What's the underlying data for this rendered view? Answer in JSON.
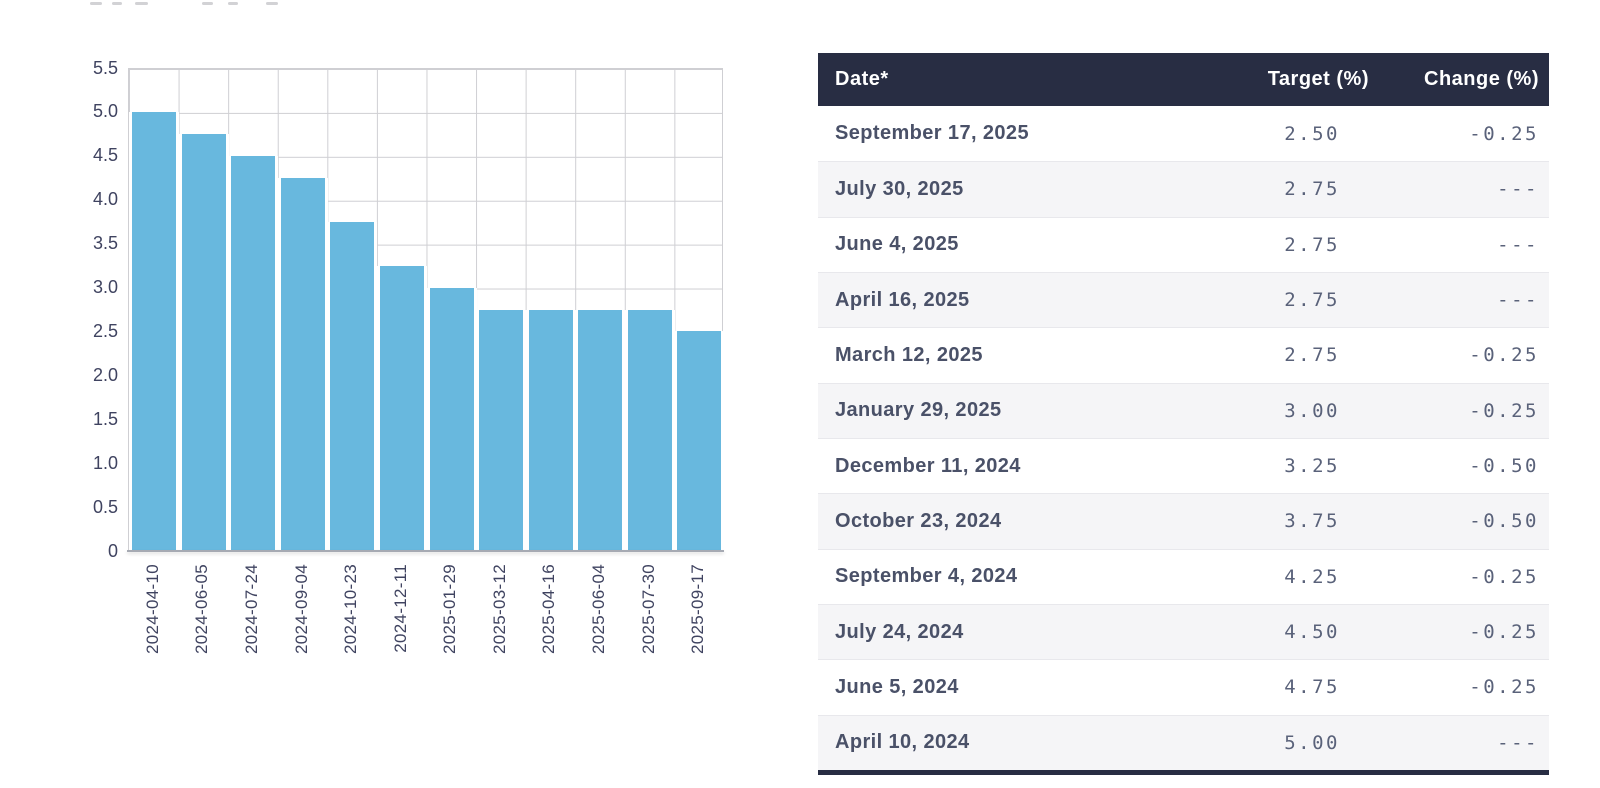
{
  "chart_data": {
    "type": "bar",
    "categories": [
      "2024-04-10",
      "2024-06-05",
      "2024-07-24",
      "2024-09-04",
      "2024-10-23",
      "2024-12-11",
      "2025-01-29",
      "2025-03-12",
      "2025-04-16",
      "2025-06-04",
      "2025-07-30",
      "2025-09-17"
    ],
    "values": [
      5.0,
      4.75,
      4.5,
      4.25,
      3.75,
      3.25,
      3.0,
      2.75,
      2.75,
      2.75,
      2.75,
      2.5
    ],
    "title": "",
    "xlabel": "",
    "ylabel": "",
    "ylim": [
      0,
      5.5
    ],
    "ytick_labels": [
      "5.5",
      "5.0",
      "4.5",
      "4.0",
      "3.5",
      "3.0",
      "2.5",
      "2.0",
      "1.5",
      "1.0",
      "0.5",
      "0"
    ],
    "grid": true,
    "legend_position": "none",
    "bar_color": "#68b8de"
  },
  "table": {
    "columns": [
      "Date*",
      "Target (%)",
      "Change (%)"
    ],
    "rows": [
      {
        "date": "September 17, 2025",
        "target": "2.50",
        "change": "-0.25"
      },
      {
        "date": "July 30, 2025",
        "target": "2.75",
        "change": "---"
      },
      {
        "date": "June 4, 2025",
        "target": "2.75",
        "change": "---"
      },
      {
        "date": "April 16, 2025",
        "target": "2.75",
        "change": "---"
      },
      {
        "date": "March 12, 2025",
        "target": "2.75",
        "change": "-0.25"
      },
      {
        "date": "January 29, 2025",
        "target": "3.00",
        "change": "-0.25"
      },
      {
        "date": "December 11, 2024",
        "target": "3.25",
        "change": "-0.50"
      },
      {
        "date": "October 23, 2024",
        "target": "3.75",
        "change": "-0.50"
      },
      {
        "date": "September 4, 2024",
        "target": "4.25",
        "change": "-0.25"
      },
      {
        "date": "July 24, 2024",
        "target": "4.50",
        "change": "-0.25"
      },
      {
        "date": "June 5, 2024",
        "target": "4.75",
        "change": "-0.25"
      },
      {
        "date": "April 10, 2024",
        "target": "5.00",
        "change": "---"
      }
    ],
    "colors": {
      "header_bg": "#282d43",
      "header_text": "#ffffff",
      "date_text": "#4a5168",
      "number_text": "#5a627a",
      "alt_row_bg": "#f5f5f7"
    }
  }
}
